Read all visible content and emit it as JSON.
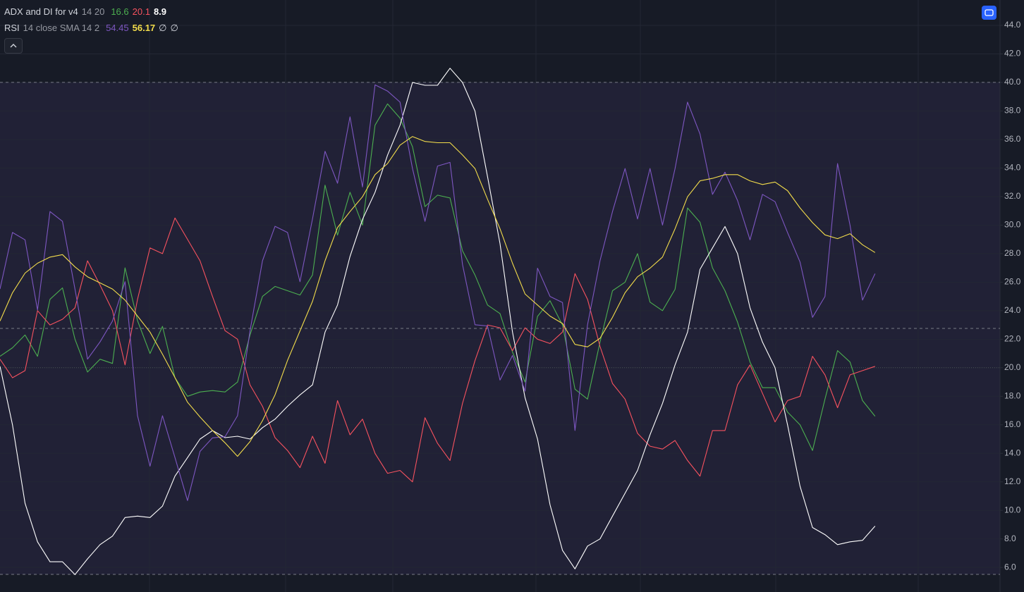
{
  "chart_data": {
    "type": "line",
    "indicators": [
      {
        "name": "ADX and DI for v4",
        "params": "14 20",
        "readouts": [
          16.6,
          20.1,
          8.9
        ],
        "extras": []
      },
      {
        "name": "RSI",
        "params": "14 close SMA 14 2",
        "readouts": [
          54.45,
          56.17
        ],
        "extras": [
          "∅",
          "∅"
        ]
      }
    ],
    "x": [
      0,
      1,
      2,
      3,
      4,
      5,
      6,
      7,
      8,
      9,
      10,
      11,
      12,
      13,
      14,
      15,
      16,
      17,
      18,
      19,
      20,
      21,
      22,
      23,
      24,
      25,
      26,
      27,
      28,
      29,
      30,
      31,
      32,
      33,
      34,
      35,
      36,
      37,
      38,
      39,
      40,
      41,
      42,
      43,
      44,
      45,
      46,
      47,
      48,
      49,
      50,
      51,
      52,
      53,
      54,
      55,
      56,
      57,
      58,
      59,
      60,
      61,
      62,
      63,
      64,
      65,
      66,
      67,
      68,
      69,
      70
    ],
    "xlim": [
      0,
      80
    ],
    "ylim": [
      4.28,
      45.78
    ],
    "y2lim": [
      28.57,
      76.7
    ],
    "yticks": [
      {
        "value": 6,
        "label": "6.0"
      },
      {
        "value": 8,
        "label": "8.0"
      },
      {
        "value": 10,
        "label": "10.0"
      },
      {
        "value": 12,
        "label": "12.0"
      },
      {
        "value": 14,
        "label": "14.0"
      },
      {
        "value": 16,
        "label": "16.0"
      },
      {
        "value": 18,
        "label": "18.0"
      },
      {
        "value": 20,
        "label": "20.0"
      },
      {
        "value": 22,
        "label": "22.0"
      },
      {
        "value": 24,
        "label": "24.0"
      },
      {
        "value": 26,
        "label": "26.0"
      },
      {
        "value": 28,
        "label": "28.0"
      },
      {
        "value": 30,
        "label": "30.0"
      },
      {
        "value": 32,
        "label": "32.0"
      },
      {
        "value": 34,
        "label": "34.0"
      },
      {
        "value": 36,
        "label": "36.0"
      },
      {
        "value": 38,
        "label": "38.0"
      },
      {
        "value": 40,
        "label": "40.0"
      },
      {
        "value": 42,
        "label": "42.0"
      },
      {
        "value": 44,
        "label": "44.0"
      }
    ],
    "grid": true,
    "band": {
      "from": 30,
      "to": 70,
      "axis": "y2",
      "color": "#7e57c2"
    },
    "levels": [
      {
        "value": 70,
        "axis": "y2",
        "style": "dashed"
      },
      {
        "value": 50,
        "axis": "y2",
        "style": "dashed"
      },
      {
        "value": 30,
        "axis": "y2",
        "style": "dashed"
      },
      {
        "value": 20,
        "axis": "y",
        "style": "dotted"
      }
    ],
    "series": [
      {
        "name": "+DI",
        "color": "#4caf50",
        "values": [
          20.8,
          21.4,
          22.3,
          20.8,
          24.8,
          25.6,
          22.0,
          19.7,
          20.6,
          20.3,
          27.0,
          23.3,
          21.0,
          22.9,
          19.3,
          18.0,
          18.3,
          18.4,
          18.3,
          19.0,
          22.3,
          25.0,
          25.7,
          25.4,
          25.1,
          26.5,
          32.8,
          29.3,
          32.3,
          30.0,
          37.0,
          38.5,
          37.5,
          35.5,
          31.3,
          32.1,
          31.9,
          28.2,
          26.5,
          24.4,
          23.8,
          21.1,
          19.0,
          23.6,
          24.7,
          23.0,
          18.5,
          17.8,
          21.8,
          25.4,
          26.0,
          28.0,
          24.6,
          24.0,
          25.5,
          31.2,
          30.2,
          27.0,
          25.4,
          23.2,
          20.4,
          18.6,
          18.6,
          16.9,
          16.0,
          14.2,
          17.8,
          21.2,
          20.4,
          17.7,
          16.6
        ]
      },
      {
        "name": "-DI",
        "color": "#f7525f",
        "values": [
          20.6,
          19.3,
          19.8,
          24.0,
          23.0,
          23.4,
          24.2,
          27.5,
          25.8,
          24.0,
          20.2,
          24.8,
          28.4,
          28.0,
          30.5,
          29.0,
          27.5,
          25.0,
          22.6,
          22.0,
          18.8,
          17.3,
          15.1,
          14.2,
          13.0,
          15.2,
          13.3,
          17.7,
          15.3,
          16.4,
          14.0,
          12.6,
          12.8,
          12.0,
          16.5,
          14.7,
          13.5,
          17.5,
          20.5,
          23.0,
          22.8,
          21.2,
          22.8,
          22.0,
          21.7,
          22.5,
          26.6,
          24.8,
          21.5,
          18.9,
          17.8,
          15.4,
          14.5,
          14.3,
          14.9,
          13.5,
          12.4,
          15.6,
          15.6,
          18.8,
          20.2,
          18.2,
          16.2,
          17.7,
          18.0,
          20.8,
          19.5,
          17.2,
          19.5,
          19.8,
          20.1
        ]
      },
      {
        "name": "ADX",
        "color": "#ffffff",
        "values": [
          20.1,
          16.0,
          10.5,
          7.8,
          6.4,
          6.4,
          5.5,
          6.6,
          7.6,
          8.2,
          9.5,
          9.6,
          9.5,
          10.3,
          12.4,
          13.7,
          15.0,
          15.6,
          15.1,
          15.2,
          15.0,
          15.8,
          16.4,
          17.3,
          18.1,
          18.8,
          22.5,
          24.4,
          27.8,
          30.4,
          32.3,
          34.9,
          37.0,
          40.0,
          39.8,
          39.8,
          41.0,
          40.0,
          38.0,
          33.4,
          28.7,
          22.5,
          17.9,
          15.0,
          10.4,
          7.2,
          5.9,
          7.5,
          8.0,
          9.6,
          11.2,
          12.8,
          15.3,
          17.5,
          20.2,
          22.5,
          26.9,
          28.4,
          29.9,
          28.0,
          24.2,
          21.8,
          20.0,
          16.0,
          11.7,
          8.8,
          8.3,
          7.6,
          7.8,
          7.9,
          8.9
        ]
      },
      {
        "name": "RSI",
        "color": "#7e57c2",
        "axis": "y2",
        "values": [
          53.2,
          57.8,
          57.2,
          51.5,
          59.5,
          58.7,
          53.2,
          47.5,
          48.9,
          50.6,
          53.8,
          42.9,
          38.8,
          42.9,
          39.5,
          36.0,
          40.0,
          41.1,
          41.2,
          42.9,
          49.8,
          55.5,
          58.3,
          57.8,
          53.8,
          58.9,
          64.4,
          61.8,
          67.2,
          61.5,
          69.8,
          69.3,
          68.4,
          63.0,
          58.7,
          63.2,
          63.5,
          55.2,
          50.3,
          50.2,
          45.8,
          47.8,
          44.9,
          54.9,
          52.6,
          52.1,
          41.7,
          50.3,
          55.5,
          59.5,
          63.0,
          58.9,
          63.0,
          58.4,
          63.0,
          68.4,
          65.8,
          60.9,
          62.7,
          60.4,
          57.2,
          60.9,
          60.3,
          57.8,
          55.4,
          50.9,
          52.6,
          63.4,
          58.4,
          52.3,
          54.45
        ]
      },
      {
        "name": "SMA",
        "color": "#f2dc4b",
        "axis": "y2",
        "values": [
          50.6,
          52.9,
          54.5,
          55.3,
          55.8,
          56.0,
          55.0,
          54.2,
          53.7,
          53.2,
          52.3,
          51.0,
          49.7,
          47.9,
          46.0,
          44.0,
          42.8,
          41.7,
          40.7,
          39.6,
          40.8,
          42.5,
          44.6,
          47.4,
          49.8,
          52.2,
          55.5,
          58.2,
          59.5,
          60.7,
          62.5,
          63.4,
          64.9,
          65.6,
          65.2,
          65.1,
          65.1,
          64.1,
          63.0,
          60.5,
          58.1,
          55.3,
          52.8,
          51.9,
          51.0,
          50.4,
          48.7,
          48.5,
          49.2,
          50.9,
          52.9,
          54.2,
          54.9,
          55.8,
          58.1,
          60.7,
          62.0,
          62.2,
          62.5,
          62.5,
          62.0,
          61.7,
          61.9,
          61.2,
          59.8,
          58.6,
          57.6,
          57.3,
          57.7,
          56.8,
          56.17
        ]
      }
    ]
  }
}
